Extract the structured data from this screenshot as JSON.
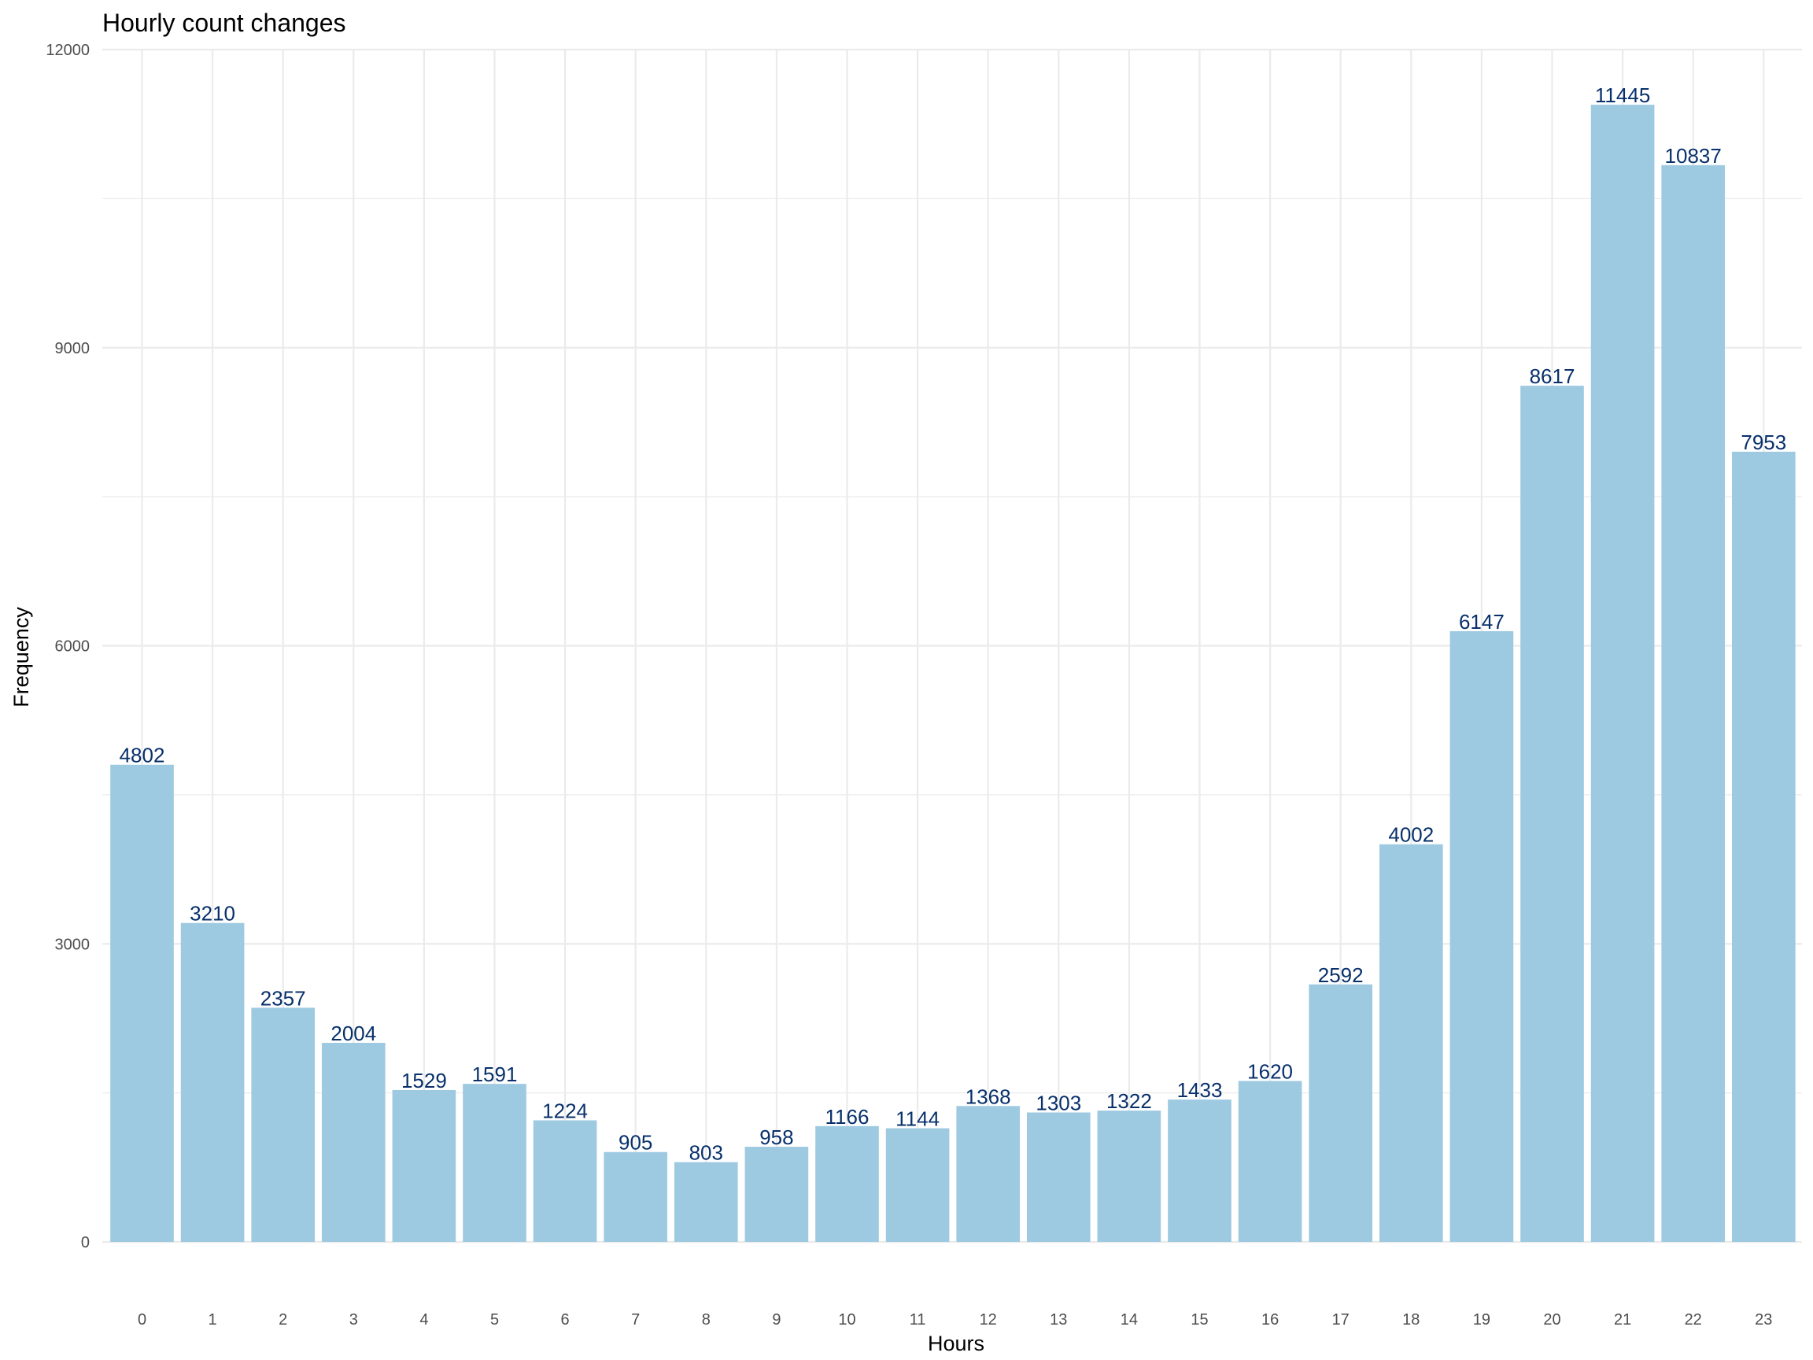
{
  "chart_data": {
    "type": "bar",
    "title": "Hourly count changes",
    "xlabel": "Hours",
    "ylabel": "Frequency",
    "categories": [
      "0",
      "1",
      "2",
      "3",
      "4",
      "5",
      "6",
      "7",
      "8",
      "9",
      "10",
      "11",
      "12",
      "13",
      "14",
      "15",
      "16",
      "17",
      "18",
      "19",
      "20",
      "21",
      "22",
      "23"
    ],
    "values": [
      4802,
      3210,
      2357,
      2004,
      1529,
      1591,
      1224,
      905,
      803,
      958,
      1166,
      1144,
      1368,
      1303,
      1322,
      1433,
      1620,
      2592,
      4002,
      6147,
      8617,
      11445,
      10837,
      7953
    ],
    "y_ticks": [
      "0",
      "3000",
      "6000",
      "9000",
      "12000"
    ],
    "ylim": [
      0,
      12000
    ],
    "grid": true,
    "legend": "none",
    "colors": {
      "bar": "#9ecae1",
      "label": "#08306b",
      "grid": "#ebebeb"
    }
  }
}
